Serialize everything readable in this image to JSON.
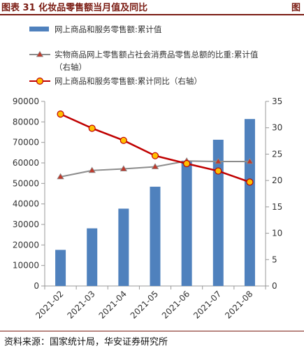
{
  "header": {
    "title": "图表 31  化妆品零售额当月值及同比",
    "title_right": "图"
  },
  "footer": {
    "source": "资料来源：国家统计局，华安证券研究所"
  },
  "colors": {
    "bar": "#4f81bd",
    "share_line": "#8c8c8c",
    "share_marker": "#c0392b",
    "yoy_line": "#c00000",
    "yoy_marker_fill": "#ffc000"
  },
  "chart_data": {
    "type": "bar",
    "categories": [
      "2021-02",
      "2021-03",
      "2021-04",
      "2021-05",
      "2021-06",
      "2021-07",
      "2021-08"
    ],
    "y_left_ticks": [
      "0",
      "10000",
      "20000",
      "30000",
      "40000",
      "50000",
      "60000",
      "70000",
      "80000",
      "90000"
    ],
    "y_right_ticks": [
      "0",
      "5",
      "10",
      "15",
      "20",
      "25",
      "30",
      "35"
    ],
    "ylim_left": [
      0,
      90000
    ],
    "ylim_right": [
      0,
      35
    ],
    "series": [
      {
        "name": "网上商品和服务零售额:累计值",
        "axis": "left",
        "kind": "bar",
        "values": [
          17600,
          28100,
          37700,
          48400,
          61100,
          71300,
          81400
        ]
      },
      {
        "name": "实物商品网上零售额占社会消费品零售总额的比重:累计值",
        "name_line2": "（右轴）",
        "axis": "right",
        "kind": "line",
        "values": [
          20.7,
          21.9,
          22.2,
          22.6,
          23.7,
          23.6,
          23.6
        ]
      },
      {
        "name": "网上商品和服务零售额:累计同比（右轴）",
        "axis": "right",
        "kind": "line",
        "values": [
          32.6,
          29.9,
          27.6,
          24.7,
          23.2,
          21.8,
          19.7
        ]
      }
    ],
    "legend_position": "top",
    "grid": false
  }
}
